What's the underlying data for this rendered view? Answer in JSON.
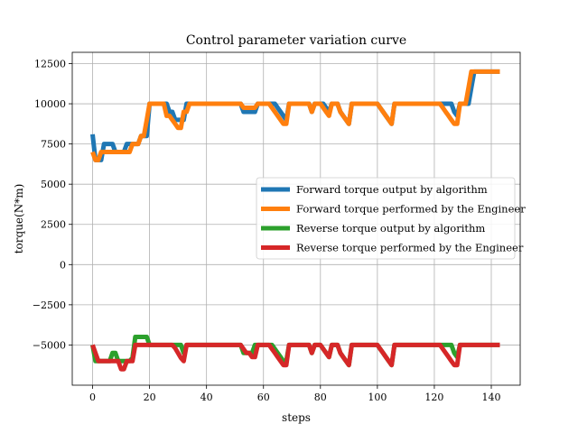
{
  "chart_data": {
    "type": "line",
    "title": "Control parameter variation curve",
    "xlabel": "steps",
    "ylabel": "torque(N*m)",
    "xlim": [
      -7.15,
      150.15
    ],
    "ylim": [
      -7500,
      13200
    ],
    "xticks": [
      0,
      20,
      40,
      60,
      80,
      100,
      120,
      140
    ],
    "yticks": [
      -5000,
      -2500,
      0,
      2500,
      5000,
      7500,
      10000,
      12500
    ],
    "ytick_labels": [
      "−5000",
      "−2500",
      "0",
      "2500",
      "5000",
      "7500",
      "10000",
      "12500"
    ],
    "grid": true,
    "legend_position": "center-right",
    "series": [
      {
        "name": "Forward torque output by algorithm",
        "color": "#1f77b4",
        "x": [
          0,
          1,
          2,
          3,
          4,
          5,
          6,
          7,
          8,
          9,
          10,
          11,
          12,
          13,
          14,
          15,
          16,
          17,
          18,
          19,
          20,
          21,
          22,
          23,
          24,
          25,
          26,
          27,
          28,
          29,
          30,
          31,
          32,
          33,
          34,
          35,
          36,
          37,
          38,
          39,
          40,
          41,
          42,
          43,
          44,
          45,
          46,
          47,
          48,
          49,
          50,
          51,
          52,
          53,
          54,
          55,
          56,
          57,
          58,
          59,
          60,
          61,
          62,
          63,
          64,
          65,
          66,
          67,
          68,
          69,
          70,
          71,
          72,
          73,
          74,
          75,
          76,
          77,
          78,
          79,
          80,
          81,
          82,
          83,
          84,
          85,
          86,
          87,
          88,
          89,
          90,
          91,
          92,
          93,
          94,
          95,
          96,
          97,
          98,
          99,
          100,
          101,
          102,
          103,
          104,
          105,
          106,
          107,
          108,
          109,
          110,
          111,
          112,
          113,
          114,
          115,
          116,
          117,
          118,
          119,
          120,
          121,
          122,
          123,
          124,
          125,
          126,
          127,
          128,
          129,
          130,
          131,
          132,
          133,
          134,
          135,
          136,
          137,
          138,
          139,
          140,
          141,
          142,
          143
        ],
        "y": [
          8100,
          6500,
          6500,
          6500,
          7500,
          7500,
          7500,
          7500,
          7000,
          7000,
          7000,
          7000,
          7500,
          7500,
          7500,
          7500,
          7500,
          8000,
          8000,
          8000,
          10000,
          10000,
          10000,
          10000,
          10000,
          10000,
          10000,
          9500,
          9500,
          9000,
          9000,
          9000,
          9000,
          10000,
          10000,
          10000,
          10000,
          10000,
          10000,
          10000,
          10000,
          10000,
          10000,
          10000,
          10000,
          10000,
          10000,
          10000,
          10000,
          10000,
          10000,
          10000,
          10000,
          9500,
          9500,
          9500,
          9500,
          9500,
          10000,
          10000,
          10000,
          10000,
          10000,
          10000,
          10000,
          9750,
          9500,
          9250,
          9000,
          10000,
          10000,
          10000,
          10000,
          10000,
          10000,
          10000,
          10000,
          9500,
          10000,
          10000,
          10000,
          10000,
          9750,
          9500,
          10000,
          10000,
          10000,
          9500,
          9250,
          9000,
          8750,
          10000,
          10000,
          10000,
          10000,
          10000,
          10000,
          10000,
          10000,
          10000,
          10000,
          9750,
          9500,
          9250,
          9000,
          8750,
          10000,
          10000,
          10000,
          10000,
          10000,
          10000,
          10000,
          10000,
          10000,
          10000,
          10000,
          10000,
          10000,
          10000,
          10000,
          10000,
          10000,
          10000,
          10000,
          10000,
          10000,
          9500,
          9250,
          10000,
          10000,
          10000,
          10000,
          11000,
          12000,
          12000,
          12000,
          12000,
          12000,
          12000,
          12000,
          12000,
          12000,
          12000
        ]
      },
      {
        "name": "Forward torque performed by the Engineer",
        "color": "#ff7f0e",
        "x": [
          0,
          1,
          2,
          3,
          4,
          5,
          6,
          7,
          8,
          9,
          10,
          11,
          12,
          13,
          14,
          15,
          16,
          17,
          18,
          19,
          20,
          21,
          22,
          23,
          24,
          25,
          26,
          27,
          28,
          29,
          30,
          31,
          32,
          33,
          34,
          35,
          36,
          37,
          38,
          39,
          40,
          41,
          42,
          43,
          44,
          45,
          46,
          47,
          48,
          49,
          50,
          51,
          52,
          53,
          54,
          55,
          56,
          57,
          58,
          59,
          60,
          61,
          62,
          63,
          64,
          65,
          66,
          67,
          68,
          69,
          70,
          71,
          72,
          73,
          74,
          75,
          76,
          77,
          78,
          79,
          80,
          81,
          82,
          83,
          84,
          85,
          86,
          87,
          88,
          89,
          90,
          91,
          92,
          93,
          94,
          95,
          96,
          97,
          98,
          99,
          100,
          101,
          102,
          103,
          104,
          105,
          106,
          107,
          108,
          109,
          110,
          111,
          112,
          113,
          114,
          115,
          116,
          117,
          118,
          119,
          120,
          121,
          122,
          123,
          124,
          125,
          126,
          127,
          128,
          129,
          130,
          131,
          132,
          133,
          134,
          135,
          136,
          137,
          138,
          139,
          140,
          141,
          142,
          143
        ],
        "y": [
          7000,
          6500,
          6500,
          7000,
          7000,
          7000,
          7000,
          7000,
          7000,
          7000,
          7000,
          7000,
          7000,
          7000,
          7500,
          7500,
          7500,
          8000,
          8000,
          9000,
          10000,
          10000,
          10000,
          10000,
          10000,
          10000,
          9250,
          9250,
          9000,
          8750,
          8500,
          8500,
          9500,
          9500,
          10000,
          10000,
          10000,
          10000,
          10000,
          10000,
          10000,
          10000,
          10000,
          10000,
          10000,
          10000,
          10000,
          10000,
          10000,
          10000,
          10000,
          10000,
          10000,
          9750,
          9750,
          9750,
          9750,
          9750,
          10000,
          10000,
          10000,
          10000,
          10000,
          9750,
          9500,
          9250,
          9000,
          8750,
          8750,
          10000,
          10000,
          10000,
          10000,
          10000,
          10000,
          10000,
          10000,
          9500,
          10000,
          10000,
          10000,
          9750,
          9500,
          9250,
          10000,
          10000,
          10000,
          9500,
          9250,
          9000,
          8750,
          10000,
          10000,
          10000,
          10000,
          10000,
          10000,
          10000,
          10000,
          10000,
          10000,
          9750,
          9500,
          9250,
          9000,
          8750,
          10000,
          10000,
          10000,
          10000,
          10000,
          10000,
          10000,
          10000,
          10000,
          10000,
          10000,
          10000,
          10000,
          10000,
          10000,
          10000,
          10000,
          9750,
          9500,
          9250,
          9000,
          8750,
          8750,
          10000,
          10000,
          10000,
          11000,
          12000,
          12000,
          12000,
          12000,
          12000,
          12000,
          12000,
          12000,
          12000,
          12000,
          12000
        ]
      },
      {
        "name": "Reverse torque output by algorithm",
        "color": "#2ca02c",
        "x": [
          0,
          1,
          2,
          3,
          4,
          5,
          6,
          7,
          8,
          9,
          10,
          11,
          12,
          13,
          14,
          15,
          16,
          17,
          18,
          19,
          20,
          21,
          22,
          23,
          24,
          25,
          26,
          27,
          28,
          29,
          30,
          31,
          32,
          33,
          34,
          35,
          36,
          37,
          38,
          39,
          40,
          41,
          42,
          43,
          44,
          45,
          46,
          47,
          48,
          49,
          50,
          51,
          52,
          53,
          54,
          55,
          56,
          57,
          58,
          59,
          60,
          61,
          62,
          63,
          64,
          65,
          66,
          67,
          68,
          69,
          70,
          71,
          72,
          73,
          74,
          75,
          76,
          77,
          78,
          79,
          80,
          81,
          82,
          83,
          84,
          85,
          86,
          87,
          88,
          89,
          90,
          91,
          92,
          93,
          94,
          95,
          96,
          97,
          98,
          99,
          100,
          101,
          102,
          103,
          104,
          105,
          106,
          107,
          108,
          109,
          110,
          111,
          112,
          113,
          114,
          115,
          116,
          117,
          118,
          119,
          120,
          121,
          122,
          123,
          124,
          125,
          126,
          127,
          128,
          129,
          130,
          131,
          132,
          133,
          134,
          135,
          136,
          137,
          138,
          139,
          140,
          141,
          142,
          143
        ],
        "y": [
          -5000,
          -6000,
          -6000,
          -6000,
          -6000,
          -6000,
          -6000,
          -5500,
          -5500,
          -6000,
          -6000,
          -6000,
          -6000,
          -6000,
          -5800,
          -4500,
          -4500,
          -4500,
          -4500,
          -4500,
          -5000,
          -5000,
          -5000,
          -5000,
          -5000,
          -5000,
          -5000,
          -5000,
          -5000,
          -5000,
          -5000,
          -5000,
          -5500,
          -5000,
          -5000,
          -5000,
          -5000,
          -5000,
          -5000,
          -5000,
          -5000,
          -5000,
          -5000,
          -5000,
          -5000,
          -5000,
          -5000,
          -5000,
          -5000,
          -5000,
          -5000,
          -5000,
          -5000,
          -5500,
          -5500,
          -5500,
          -5500,
          -5000,
          -5000,
          -5000,
          -5000,
          -5000,
          -5000,
          -5000,
          -5250,
          -5500,
          -5750,
          -6000,
          -6000,
          -5000,
          -5000,
          -5000,
          -5000,
          -5000,
          -5000,
          -5000,
          -5000,
          -5500,
          -5000,
          -5000,
          -5000,
          -5250,
          -5500,
          -5750,
          -5000,
          -5000,
          -5000,
          -5500,
          -5750,
          -6000,
          -6250,
          -5000,
          -5000,
          -5000,
          -5000,
          -5000,
          -5000,
          -5000,
          -5000,
          -5000,
          -5000,
          -5250,
          -5500,
          -5750,
          -6000,
          -6250,
          -5000,
          -5000,
          -5000,
          -5000,
          -5000,
          -5000,
          -5000,
          -5000,
          -5000,
          -5000,
          -5000,
          -5000,
          -5000,
          -5000,
          -5000,
          -5000,
          -5000,
          -5000,
          -5000,
          -5000,
          -5000,
          -5500,
          -5750,
          -5000,
          -5000,
          -5000,
          -5000,
          -5000,
          -5000,
          -5000,
          -5000,
          -5000,
          -5000,
          -5000,
          -5000,
          -5000,
          -5000,
          -5000
        ]
      },
      {
        "name": "Reverse torque performed by the Engineer",
        "color": "#d62728",
        "x": [
          0,
          1,
          2,
          3,
          4,
          5,
          6,
          7,
          8,
          9,
          10,
          11,
          12,
          13,
          14,
          15,
          16,
          17,
          18,
          19,
          20,
          21,
          22,
          23,
          24,
          25,
          26,
          27,
          28,
          29,
          30,
          31,
          32,
          33,
          34,
          35,
          36,
          37,
          38,
          39,
          40,
          41,
          42,
          43,
          44,
          45,
          46,
          47,
          48,
          49,
          50,
          51,
          52,
          53,
          54,
          55,
          56,
          57,
          58,
          59,
          60,
          61,
          62,
          63,
          64,
          65,
          66,
          67,
          68,
          69,
          70,
          71,
          72,
          73,
          74,
          75,
          76,
          77,
          78,
          79,
          80,
          81,
          82,
          83,
          84,
          85,
          86,
          87,
          88,
          89,
          90,
          91,
          92,
          93,
          94,
          95,
          96,
          97,
          98,
          99,
          100,
          101,
          102,
          103,
          104,
          105,
          106,
          107,
          108,
          109,
          110,
          111,
          112,
          113,
          114,
          115,
          116,
          117,
          118,
          119,
          120,
          121,
          122,
          123,
          124,
          125,
          126,
          127,
          128,
          129,
          130,
          131,
          132,
          133,
          134,
          135,
          136,
          137,
          138,
          139,
          140,
          141,
          142,
          143
        ],
        "y": [
          -5000,
          -5500,
          -6000,
          -6000,
          -6000,
          -6000,
          -6000,
          -6000,
          -6000,
          -6000,
          -6500,
          -6500,
          -6000,
          -6000,
          -6000,
          -5000,
          -5000,
          -5000,
          -5000,
          -5000,
          -5000,
          -5000,
          -5000,
          -5000,
          -5000,
          -5000,
          -5000,
          -5000,
          -5000,
          -5200,
          -5500,
          -5800,
          -6000,
          -5000,
          -5000,
          -5000,
          -5000,
          -5000,
          -5000,
          -5000,
          -5000,
          -5000,
          -5000,
          -5000,
          -5000,
          -5000,
          -5000,
          -5000,
          -5000,
          -5000,
          -5000,
          -5000,
          -5000,
          -5250,
          -5500,
          -5500,
          -5750,
          -5750,
          -5000,
          -5000,
          -5000,
          -5000,
          -5000,
          -5250,
          -5500,
          -5750,
          -6000,
          -6250,
          -6250,
          -5000,
          -5000,
          -5000,
          -5000,
          -5000,
          -5000,
          -5000,
          -5000,
          -5500,
          -5000,
          -5000,
          -5000,
          -5250,
          -5500,
          -5750,
          -5000,
          -5000,
          -5000,
          -5500,
          -5750,
          -6000,
          -6250,
          -5000,
          -5000,
          -5000,
          -5000,
          -5000,
          -5000,
          -5000,
          -5000,
          -5000,
          -5000,
          -5250,
          -5500,
          -5750,
          -6000,
          -6250,
          -5000,
          -5000,
          -5000,
          -5000,
          -5000,
          -5000,
          -5000,
          -5000,
          -5000,
          -5000,
          -5000,
          -5000,
          -5000,
          -5000,
          -5000,
          -5000,
          -5000,
          -5250,
          -5500,
          -5750,
          -6000,
          -6250,
          -6250,
          -5000,
          -5000,
          -5000,
          -5000,
          -5000,
          -5000,
          -5000,
          -5000,
          -5000,
          -5000,
          -5000,
          -5000,
          -5000,
          -5000,
          -5000
        ]
      }
    ]
  }
}
